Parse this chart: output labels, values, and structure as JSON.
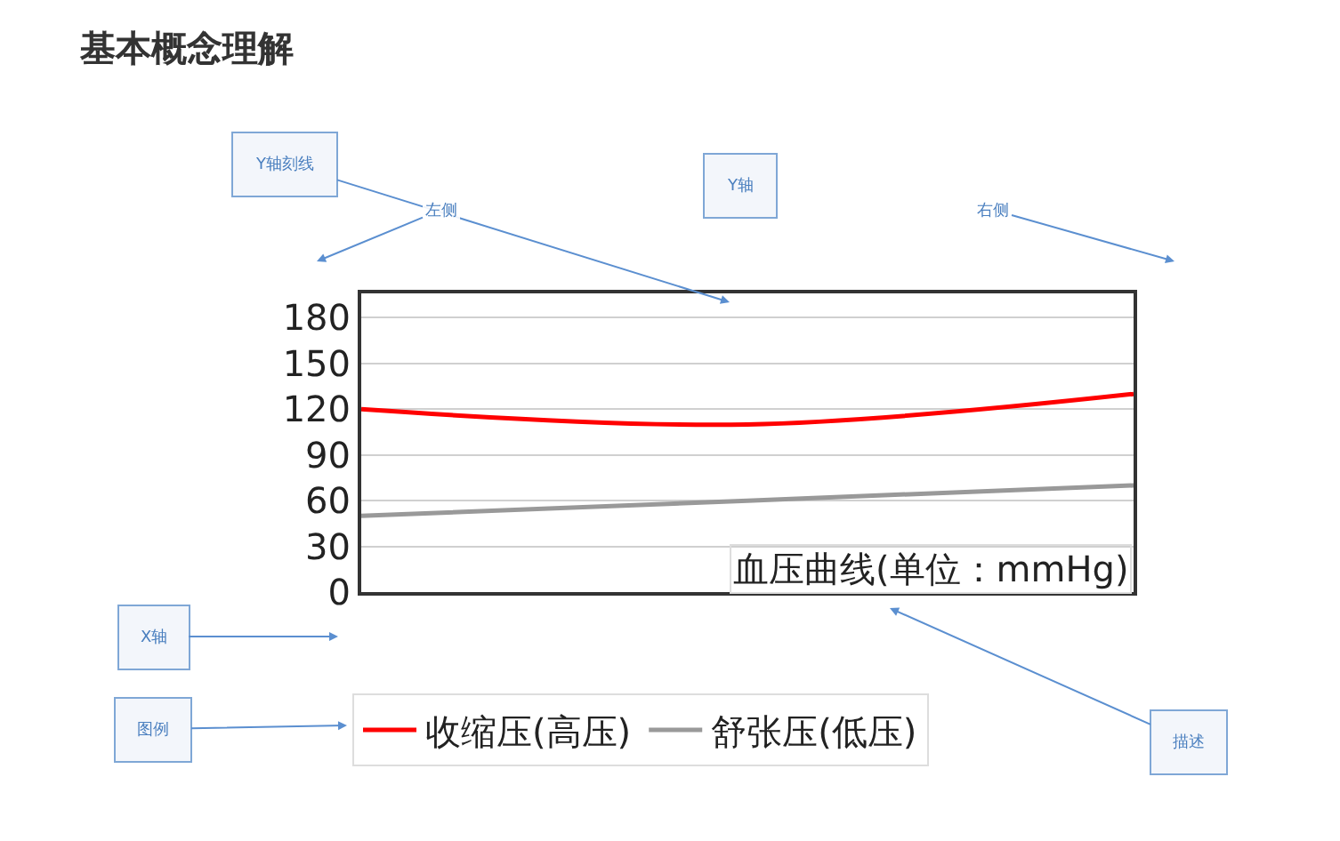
{
  "chart_data": {
    "type": "line",
    "title": "基本概念理解",
    "subtitle": "血压曲线(单位：mmHg)",
    "categories": [
      null,
      null,
      null
    ],
    "series": [
      {
        "name": "收缩压(高压)",
        "color": "#ff0000",
        "values": [
          120,
          110,
          130
        ]
      },
      {
        "name": "舒张压(低压)",
        "color": "#999999",
        "values": [
          50,
          60,
          70
        ]
      }
    ],
    "ylim": [
      0,
      196
    ],
    "yticks": [
      0,
      30,
      60,
      90,
      120,
      150,
      180
    ],
    "grid": "y",
    "legend": "bottom",
    "annotations": [
      "Y轴刻线",
      "Y轴",
      "左侧",
      "右侧",
      "X轴",
      "图例",
      "描述"
    ]
  }
}
